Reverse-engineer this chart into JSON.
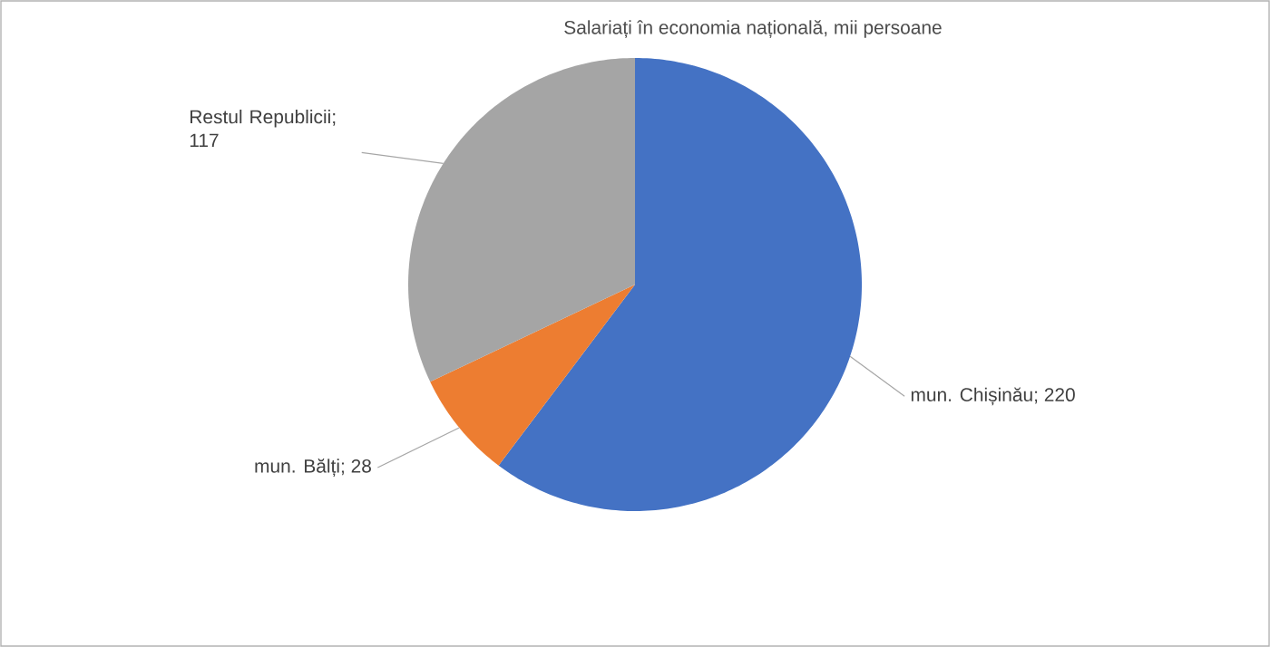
{
  "chart_data": {
    "type": "pie",
    "title": "Salariați în economia națională, mii persoane",
    "categories": [
      "mun. Chișinău",
      "mun. Bălți",
      "Restul Republicii"
    ],
    "values": [
      220,
      28,
      117
    ],
    "value_labels": [
      "; 220",
      "; 28",
      "; 117"
    ],
    "colors": [
      "#4472c4",
      "#ed7d31",
      "#a5a5a5"
    ],
    "legend": false
  }
}
